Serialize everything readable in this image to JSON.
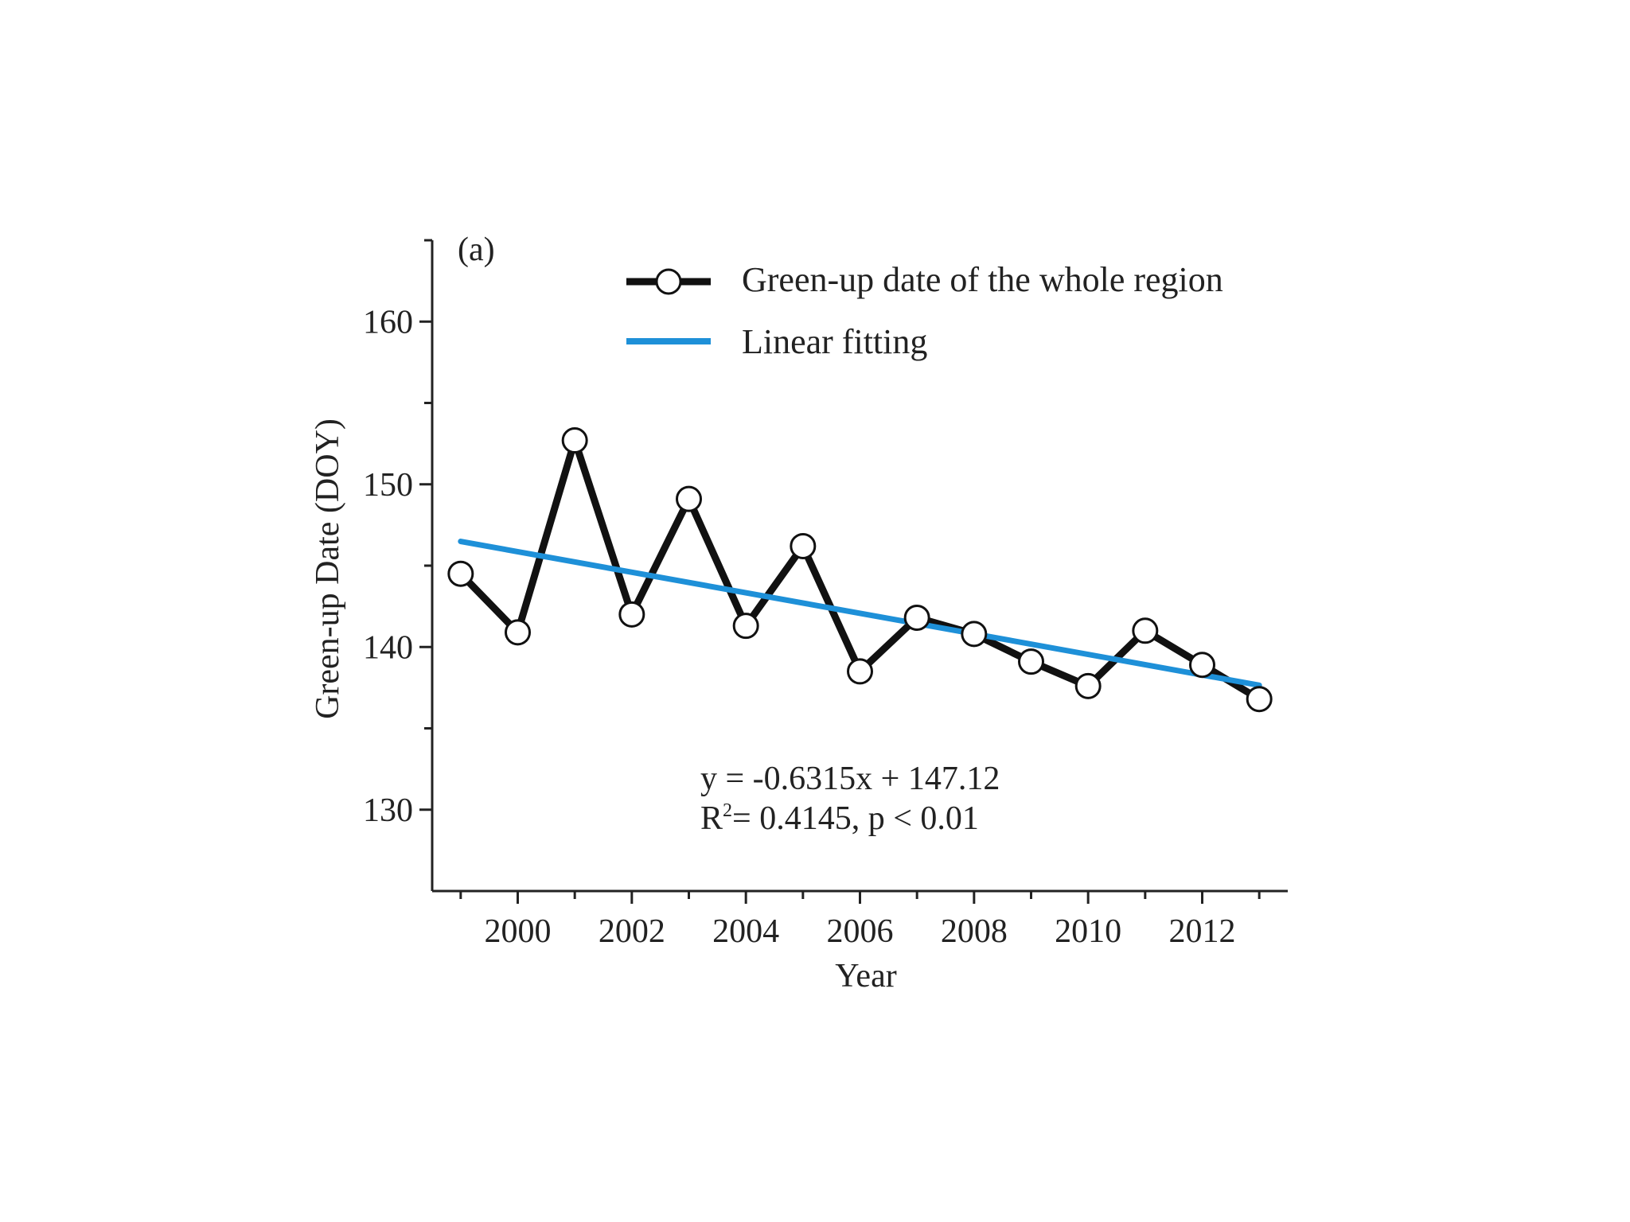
{
  "chart_data": {
    "type": "line",
    "panel_label": "(a)",
    "xlabel": "Year",
    "ylabel": "Green-up Date (DOY)",
    "xlim": [
      1998.5,
      2013.5
    ],
    "ylim": [
      125,
      165
    ],
    "x_ticks_labeled": [
      2000,
      2002,
      2004,
      2006,
      2008,
      2010,
      2012
    ],
    "y_ticks_labeled": [
      130,
      140,
      150,
      160
    ],
    "y_minor_step": 5,
    "x_minor_step": 1,
    "grid": false,
    "legend_position": "top-right",
    "series": [
      {
        "name": "Green-up date of the whole region",
        "style": "black line with open circle markers",
        "color": "#111111",
        "x": [
          1999,
          2000,
          2001,
          2002,
          2003,
          2004,
          2005,
          2006,
          2007,
          2008,
          2009,
          2010,
          2011,
          2012,
          2013
        ],
        "y": [
          144.5,
          140.9,
          152.7,
          142.0,
          149.1,
          141.3,
          146.2,
          138.5,
          141.8,
          140.8,
          139.1,
          137.6,
          141.0,
          138.9,
          136.8
        ]
      },
      {
        "name": "Linear fitting",
        "style": "blue line",
        "color": "#1e90d8",
        "x": [
          1999,
          2013
        ],
        "y": [
          146.49,
          137.65
        ]
      }
    ],
    "annotation": {
      "equation": "y = -0.6315x + 147.12",
      "stats_prefix": "R",
      "stats_sup": "2",
      "stats_suffix": "= 0.4145,  p < 0.01"
    }
  }
}
